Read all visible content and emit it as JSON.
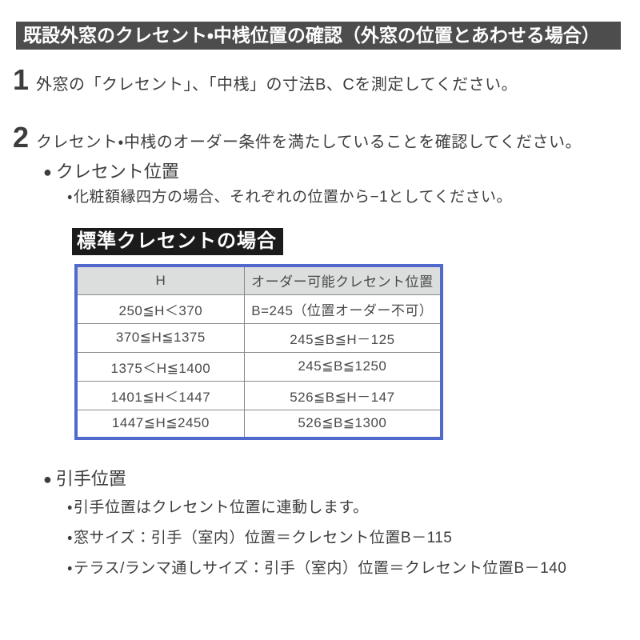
{
  "header": {
    "title": "既設外窓のクレセント・中桟位置の確認（外窓の位置とあわせる場合）"
  },
  "steps": [
    {
      "number": "1",
      "text": "外窓の「クレセント」、「中桟」の寸法B、Cを測定してください。"
    },
    {
      "number": "2",
      "text": "クレセント・中桟のオーダー条件を満たしていることを確認してください。"
    }
  ],
  "crescent_section": {
    "heading": "クレセント位置",
    "notes": [
      "化粧額縁四方の場合、それぞれの位置から−1としてください。"
    ]
  },
  "standard_crescent": {
    "banner_label": "標準クレセントの場合",
    "table": {
      "headers": [
        "H",
        "オーダー可能クレセント位置"
      ],
      "rows": [
        [
          "250≦H＜370",
          "B=245（位置オーダー不可）"
        ],
        [
          "370≦H≦1375",
          "245≦B≦H－125"
        ],
        [
          "1375＜H≦1400",
          "245≦B≦1250"
        ],
        [
          "1401≦H＜1447",
          "526≦B≦H－147"
        ],
        [
          "1447≦H≦2450",
          "526≦B≦1300"
        ]
      ]
    }
  },
  "handle_section": {
    "heading": "引手位置",
    "notes": [
      "引手位置はクレセント位置に連動します。",
      "窓サイズ：引手（室内）位置＝クレセント位置B－115",
      "テラス/ランマ通しサイズ：引手（室内）位置＝クレセント位置B－140"
    ]
  },
  "icons": {
    "section_bullet": "●"
  },
  "colors": {
    "title_banner_bg": "#4d4d4d",
    "black_banner_bg": "#1b1b1b",
    "table_border": "#5169cd",
    "table_header_bg": "#dcdedd",
    "table_divider": "#8a8a8a",
    "text": "#3d3d3d"
  }
}
